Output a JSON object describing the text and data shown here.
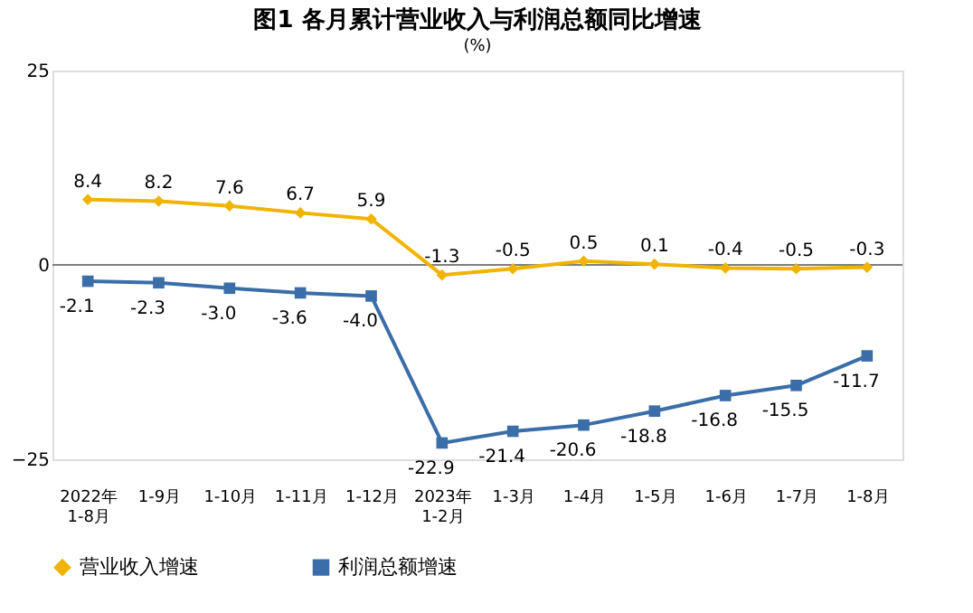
{
  "chart_data": {
    "type": "line",
    "title": "图1  各月累计营业收入与利润总额同比增速",
    "ylabel": "(%)",
    "categories": [
      "2022年\n1-8月",
      "1-9月",
      "1-10月",
      "1-11月",
      "1-12月",
      "2023年\n1-2月",
      "1-3月",
      "1-4月",
      "1-5月",
      "1-6月",
      "1-7月",
      "1-8月"
    ],
    "series": [
      {
        "name": "营业收入增速",
        "color": "#f0b400",
        "marker": "diamond",
        "values": [
          8.4,
          8.2,
          7.6,
          6.7,
          5.9,
          -1.3,
          -0.5,
          0.5,
          0.1,
          -0.4,
          -0.5,
          -0.3
        ],
        "value_labels": [
          "8.4",
          "8.2",
          "7.6",
          "6.7",
          "5.9",
          "-1.3",
          "-0.5",
          "0.5",
          "0.1",
          "-0.4",
          "-0.5",
          "-0.3"
        ]
      },
      {
        "name": "利润总额增速",
        "color": "#3b6ea8",
        "marker": "square",
        "values": [
          -2.1,
          -2.3,
          -3.0,
          -3.6,
          -4.0,
          -22.9,
          -21.4,
          -20.6,
          -18.8,
          -16.8,
          -15.5,
          -11.7
        ],
        "value_labels": [
          "-2.1",
          "-2.3",
          "-3.0",
          "-3.6",
          "-4.0",
          "-22.9",
          "-21.4",
          "-20.6",
          "-18.8",
          "-16.8",
          "-15.5",
          "-11.7"
        ]
      }
    ],
    "ylim": [
      -25,
      25
    ],
    "yticks": [
      -25,
      0,
      25
    ],
    "grid": false,
    "ref_lines": [
      {
        "axis": "y",
        "value": 0,
        "color": "#7f7f7f"
      }
    ],
    "legend": "bottom",
    "line_style": "solid"
  }
}
